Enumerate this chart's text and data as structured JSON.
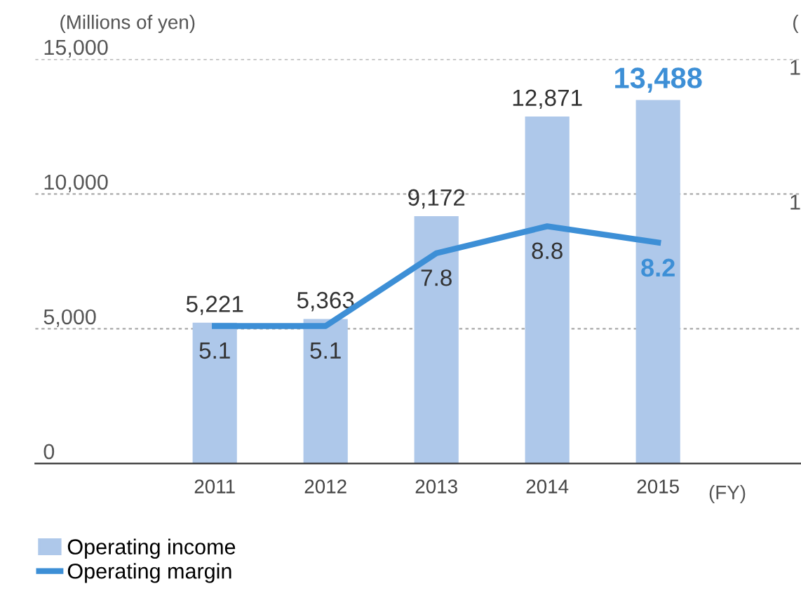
{
  "chart_data": {
    "type": "bar",
    "categories": [
      "2011",
      "2012",
      "2013",
      "2014",
      "2015"
    ],
    "series": [
      {
        "name": "Operating income",
        "color": "#aec8ea",
        "values": [
          5221,
          5363,
          9172,
          12871,
          13488
        ],
        "value_labels": [
          "5,221",
          "5,363",
          "9,172",
          "12,871",
          "13,488"
        ]
      },
      {
        "name": "Operating margin",
        "type": "line",
        "axis": "y2",
        "color": "#3d8fd6",
        "values": [
          5.1,
          5.1,
          7.8,
          8.8,
          8.2
        ],
        "value_labels": [
          "5.1",
          "5.1",
          "7.8",
          "8.8",
          "8.2"
        ]
      }
    ],
    "ylabel": "(Millions of yen)",
    "y2label": "(",
    "xlabel": "(FY)",
    "annotations": [
      "1",
      "1"
    ],
    "ylim": [
      0,
      15000
    ],
    "yticks": [
      {
        "value": 0,
        "label": "0"
      },
      {
        "value": 5000,
        "label": "5,000"
      },
      {
        "value": 10000,
        "label": "10,000"
      },
      {
        "value": 15000,
        "label": "15,000"
      }
    ],
    "y2lim": [
      0,
      15
    ],
    "grid": "y",
    "legend": "bottom",
    "marker": "none",
    "line_style": "solid"
  }
}
